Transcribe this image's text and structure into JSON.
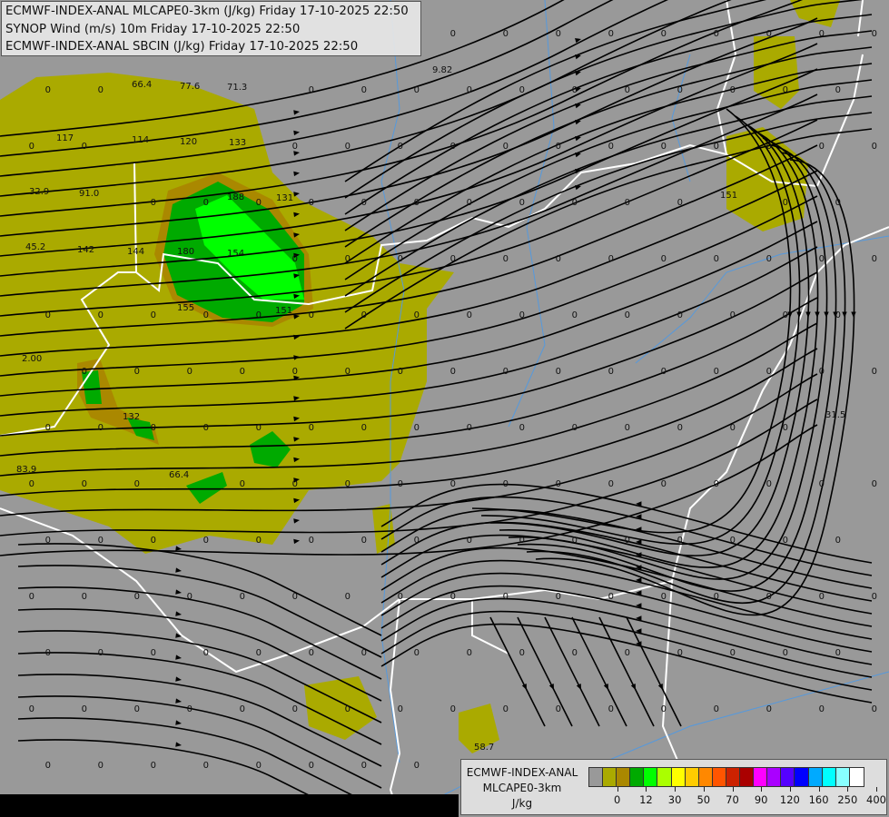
{
  "titles": [
    "ECMWF-INDEX-ANAL MLCAPE0-3km (J/kg) Friday 17-10-2025 22:50",
    "SYNOP Wind (m/s) 10m Friday 17-10-2025 22:50",
    "ECMWF-INDEX-ANAL SBCIN (J/kg) Friday 17-10-2025 22:50"
  ],
  "legend": {
    "title_line1": "ECMWF-INDEX-ANAL",
    "title_line2": "MLCAPE0-3km",
    "unit": "J/kg",
    "colors": [
      "#999999",
      "#aaaa00",
      "#aa8800",
      "#00aa00",
      "#00ff00",
      "#aaff00",
      "#ffff00",
      "#ffcc00",
      "#ff8800",
      "#ff5500",
      "#cc2200",
      "#aa0000",
      "#ff00ff",
      "#aa00ff",
      "#5500ff",
      "#0000ff",
      "#00aaff",
      "#00ffff",
      "#88ffff",
      "#ffffff"
    ],
    "tick_labels": [
      "0",
      "12",
      "30",
      "50",
      "70",
      "90",
      "120",
      "160",
      "250",
      "400"
    ]
  },
  "map_colors": {
    "background": "#999999",
    "cape_low": "#aaaa00",
    "cape_mid": "#aa8800",
    "cape_green": "#00aa00",
    "cape_lime": "#00ff00",
    "border": "#ffffff",
    "river": "#5599dd",
    "streamline": "#000000"
  },
  "cape_labels": [
    "66.4",
    "77.6",
    "71.3",
    "117",
    "114",
    "120",
    "133",
    "32.9",
    "91.0",
    "188",
    "131",
    "45.2",
    "142",
    "144",
    "180",
    "154",
    "2.00",
    "155",
    "151",
    "132",
    "83.9",
    "66.4",
    "9.82",
    "151",
    "31.5",
    "58.7"
  ]
}
